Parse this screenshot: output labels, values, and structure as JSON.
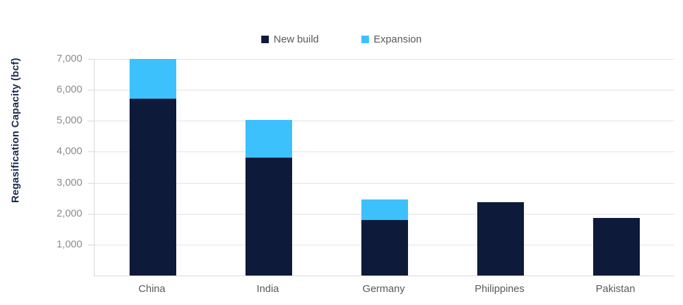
{
  "legend": {
    "position": "top-center",
    "items": [
      {
        "label": "New build",
        "color": "#0e1a3a"
      },
      {
        "label": "Expansion",
        "color": "#3cc1fc"
      }
    ]
  },
  "y_axis": {
    "title": "Regasification Capacity (bcf)",
    "title_color": "#1a2b4f",
    "tick_label_color": "#8c8c8c",
    "tick_labels": [
      "1,000",
      "2,000",
      "3,000",
      "4,000",
      "5,000",
      "6,000",
      "7,000"
    ]
  },
  "x_axis": {
    "label_color": "#595959"
  },
  "chart_data": {
    "type": "bar",
    "stacked": true,
    "categories": [
      "China",
      "India",
      "Germany",
      "Philippines",
      "Pakistan"
    ],
    "series": [
      {
        "name": "New build",
        "color": "#0e1a3a",
        "values": [
          5710,
          3820,
          1790,
          2370,
          1870
        ]
      },
      {
        "name": "Expansion",
        "color": "#3cc1fc",
        "values": [
          1290,
          1220,
          680,
          0,
          0
        ]
      }
    ],
    "title": "",
    "xlabel": "",
    "ylabel": "Regasification Capacity (bcf)",
    "ylim": [
      0,
      7000
    ],
    "ytick_step": 1000,
    "ytick_labels": [
      "1,000",
      "2,000",
      "3,000",
      "4,000",
      "5,000",
      "6,000",
      "7,000"
    ],
    "grid": true,
    "gridline_color": "#e2e2e2",
    "axis_line_color": "#d9d9d9",
    "legend_position": "top-center"
  }
}
